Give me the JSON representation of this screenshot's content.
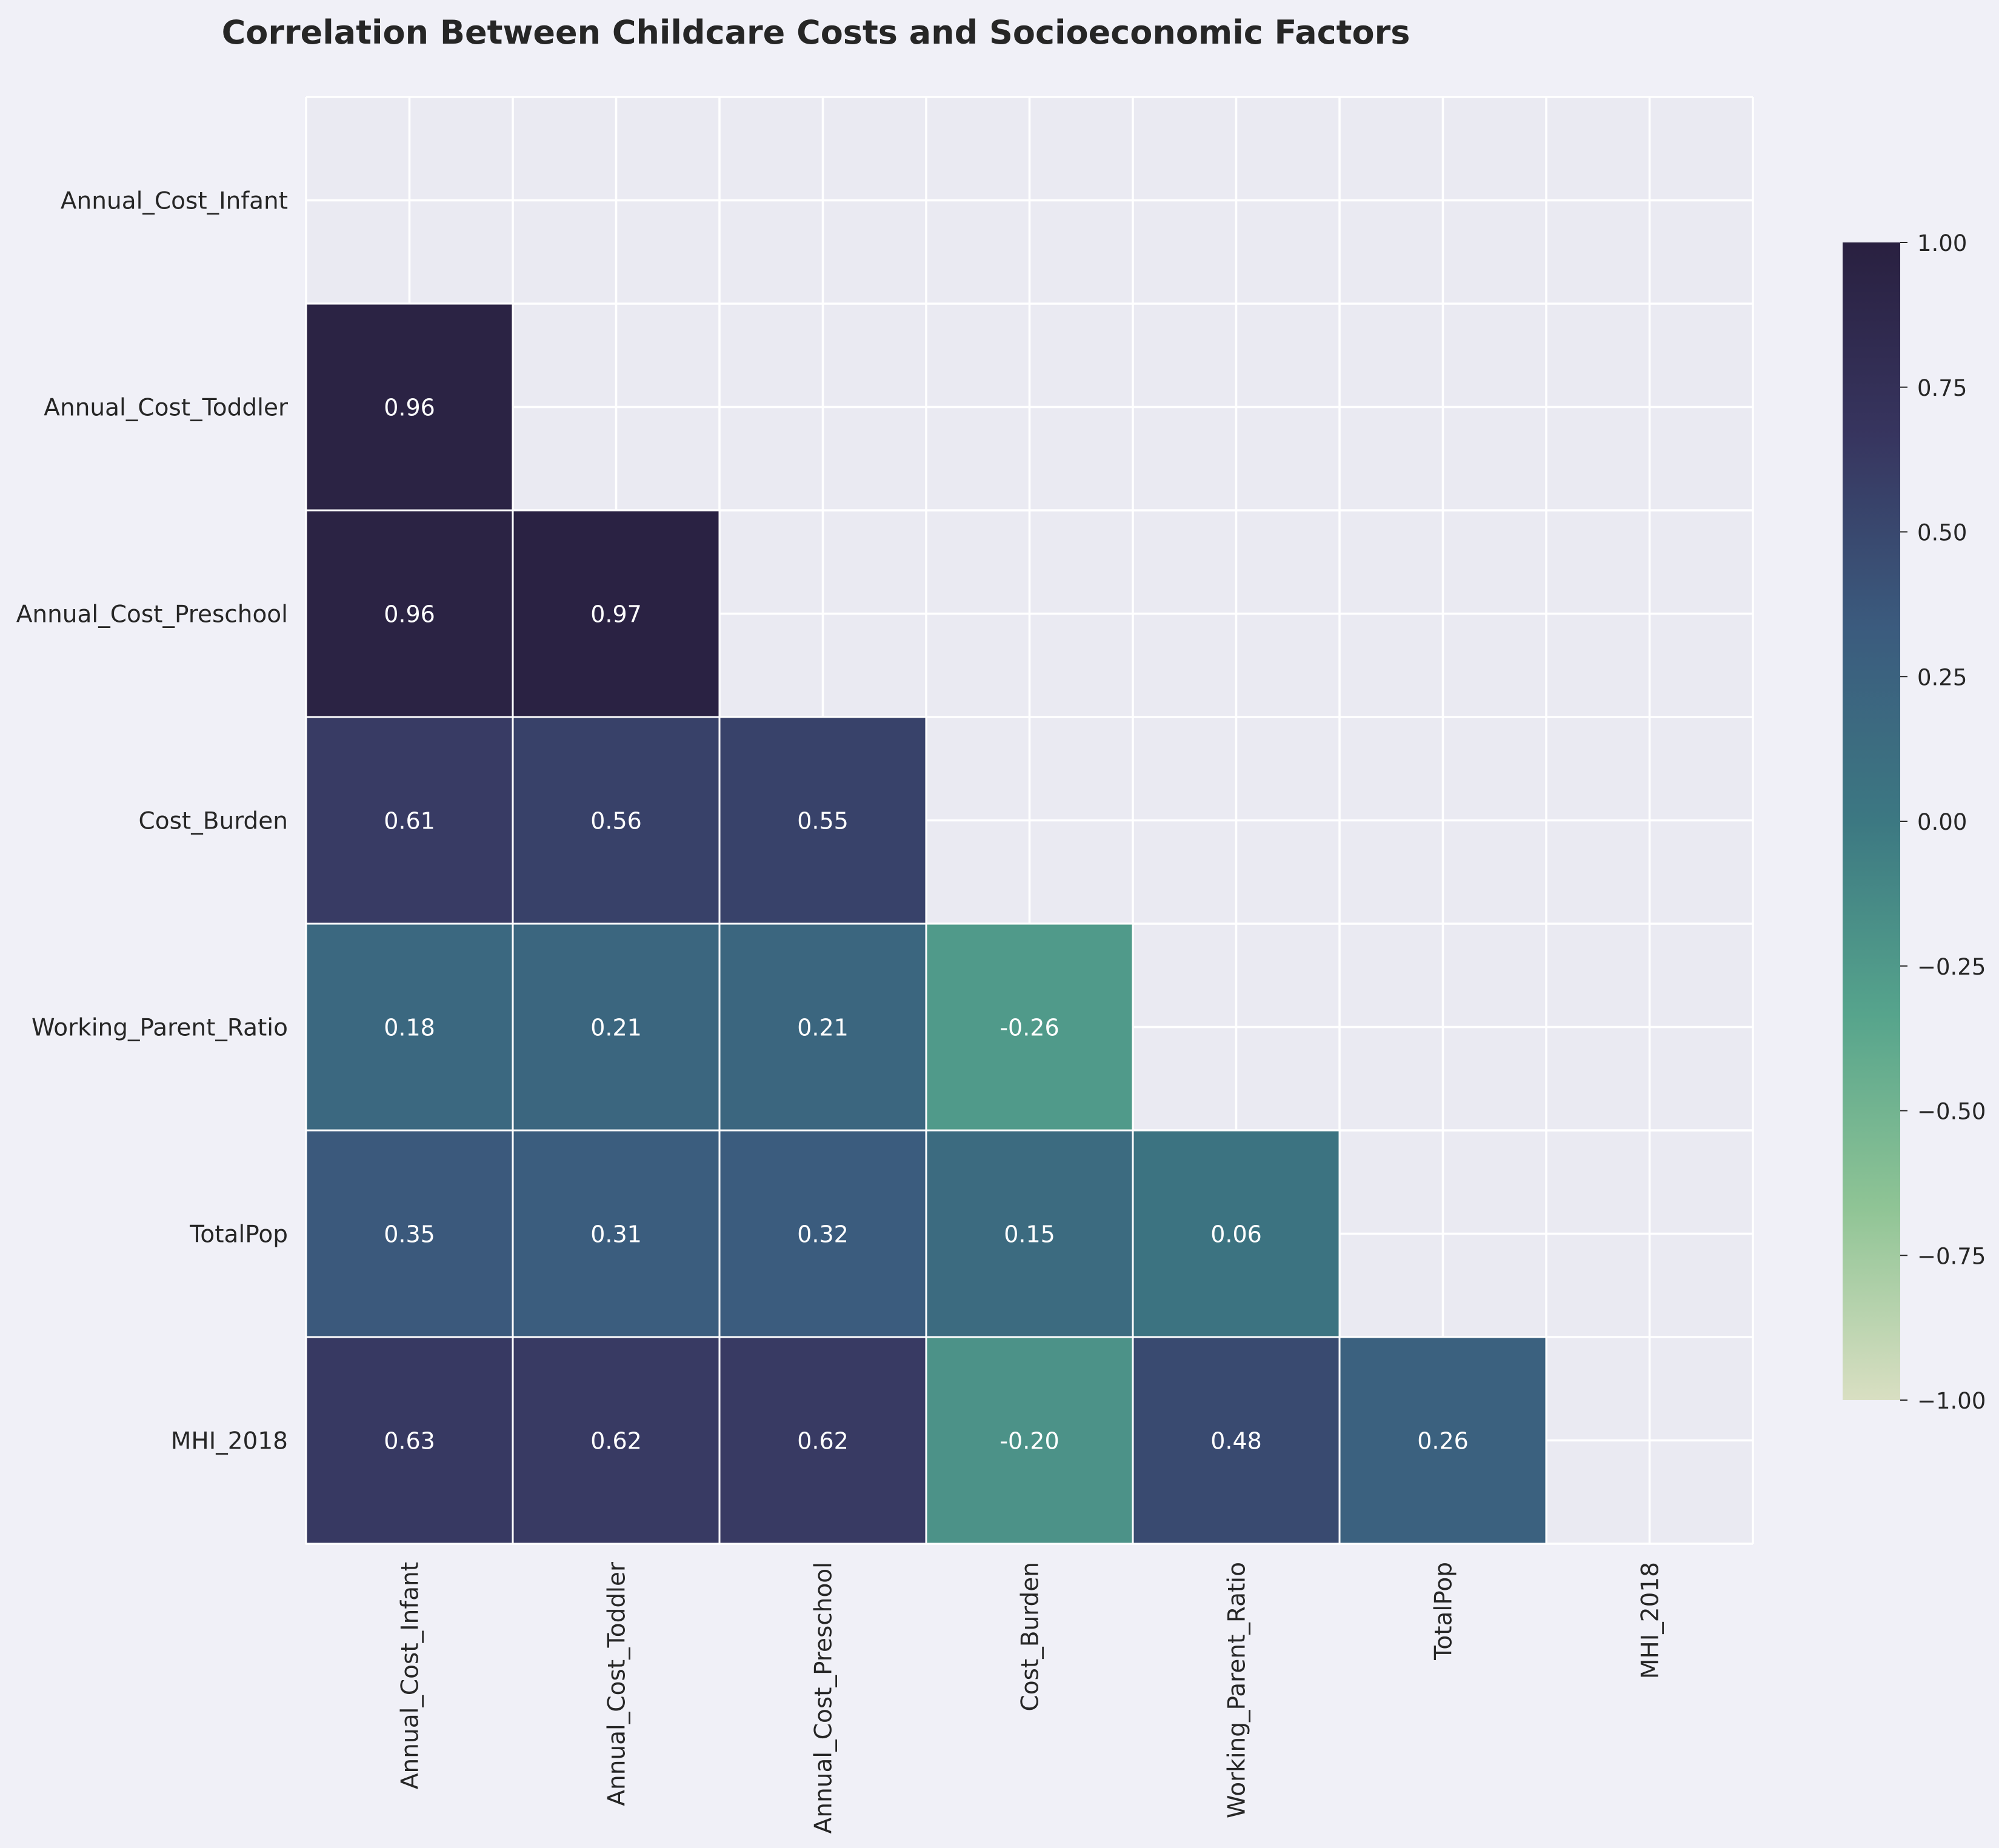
{
  "chart_data": {
    "type": "heatmap",
    "title": "Correlation Between Childcare Costs and Socioeconomic Factors",
    "variables": [
      "Annual_Cost_Infant",
      "Annual_Cost_Toddler",
      "Annual_Cost_Preschool",
      "Cost_Burden",
      "Working_Parent_Ratio",
      "TotalPop",
      "MHI_2018"
    ],
    "matrix": [
      [
        null,
        null,
        null,
        null,
        null,
        null,
        null
      ],
      [
        0.96,
        null,
        null,
        null,
        null,
        null,
        null
      ],
      [
        0.96,
        0.97,
        null,
        null,
        null,
        null,
        null
      ],
      [
        0.61,
        0.56,
        0.55,
        null,
        null,
        null,
        null
      ],
      [
        0.18,
        0.21,
        0.21,
        -0.26,
        null,
        null,
        null
      ],
      [
        0.35,
        0.31,
        0.32,
        0.15,
        0.06,
        null,
        null
      ],
      [
        0.63,
        0.62,
        0.62,
        -0.2,
        0.48,
        0.26,
        null
      ]
    ],
    "value_format": "0.00",
    "mask": "upper-triangle-and-diagonal",
    "colorbar": {
      "min": -1.0,
      "max": 1.0,
      "ticks": [
        "1.00",
        "0.75",
        "0.50",
        "0.25",
        "0.00",
        "−0.25",
        "−0.50",
        "−0.75",
        "−1.00"
      ],
      "colormap": [
        "#d9dfc2",
        "#8fc495",
        "#56a48c",
        "#3c7882",
        "#3b5b7e",
        "#37355f",
        "#292040"
      ]
    },
    "grid": true,
    "colors": {
      "background": "#f0f0f7",
      "plot_background": "#eaeaf2",
      "grid": "#ffffff",
      "text_dark": "#262626",
      "cell_text": "#ffffff"
    }
  }
}
